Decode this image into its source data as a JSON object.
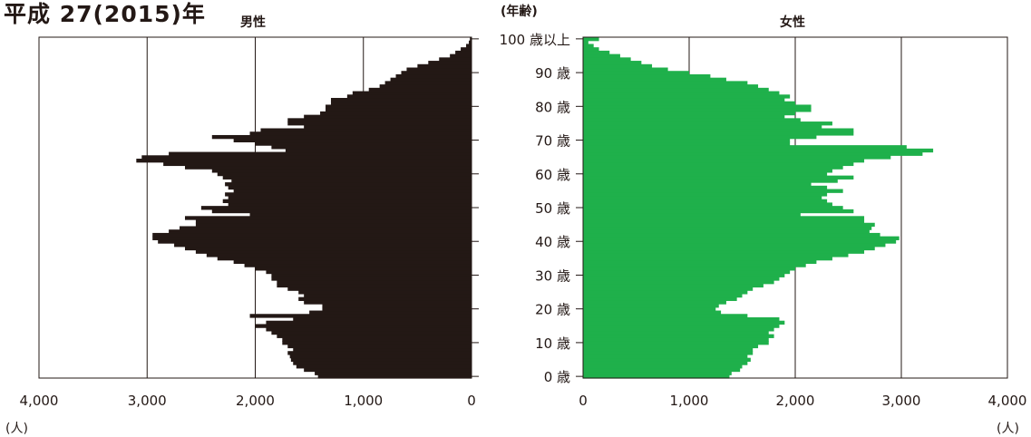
{
  "title": "平成 27(2015)年",
  "age_axis_label": "(年齢)",
  "chart_data": {
    "type": "bar",
    "orientation": "horizontal-population-pyramid",
    "title": "平成 27(2015)年",
    "ylabel": "(年齢)",
    "xlabel": "(人)",
    "xlim": [
      0,
      4000
    ],
    "x_ticks": [
      "4,000",
      "3,000",
      "2,000",
      "1,000",
      "0",
      "0",
      "1,000",
      "2,000",
      "3,000",
      "4,000"
    ],
    "y_ticks": [
      "0 歳",
      "10 歳",
      "20 歳",
      "30 歳",
      "40 歳",
      "50 歳",
      "60 歳",
      "70 歳",
      "80 歳",
      "90 歳",
      "100 歳以上"
    ],
    "ages": [
      0,
      1,
      2,
      3,
      4,
      5,
      6,
      7,
      8,
      9,
      10,
      11,
      12,
      13,
      14,
      15,
      16,
      17,
      18,
      19,
      20,
      21,
      22,
      23,
      24,
      25,
      26,
      27,
      28,
      29,
      30,
      31,
      32,
      33,
      34,
      35,
      36,
      37,
      38,
      39,
      40,
      41,
      42,
      43,
      44,
      45,
      46,
      47,
      48,
      49,
      50,
      51,
      52,
      53,
      54,
      55,
      56,
      57,
      58,
      59,
      60,
      61,
      62,
      63,
      64,
      65,
      66,
      67,
      68,
      69,
      70,
      71,
      72,
      73,
      74,
      75,
      76,
      77,
      78,
      79,
      80,
      81,
      82,
      83,
      84,
      85,
      86,
      87,
      88,
      89,
      90,
      91,
      92,
      93,
      94,
      95,
      96,
      97,
      98,
      99,
      100
    ],
    "series": [
      {
        "name": "男性",
        "color": "#231815",
        "values": [
          1420,
          1450,
          1550,
          1620,
          1650,
          1670,
          1680,
          1700,
          1650,
          1700,
          1750,
          1750,
          1800,
          1850,
          1900,
          2000,
          1900,
          1650,
          2050,
          1500,
          1380,
          1380,
          1550,
          1600,
          1550,
          1600,
          1700,
          1800,
          1800,
          1850,
          1850,
          1900,
          2000,
          2100,
          2200,
          2350,
          2450,
          2550,
          2650,
          2750,
          2900,
          2950,
          2950,
          2800,
          2700,
          2550,
          2550,
          2650,
          2050,
          2400,
          2500,
          2250,
          2300,
          2250,
          2280,
          2200,
          2250,
          2280,
          2220,
          2300,
          2350,
          2400,
          2650,
          2850,
          3100,
          3050,
          2800,
          1720,
          1850,
          2000,
          2200,
          2400,
          2050,
          1950,
          1550,
          1700,
          1700,
          1550,
          1400,
          1350,
          1350,
          1300,
          1300,
          1150,
          1100,
          950,
          850,
          800,
          750,
          700,
          650,
          600,
          500,
          400,
          300,
          200,
          150,
          100,
          50,
          25,
          15
        ]
      },
      {
        "name": "女性",
        "color": "#1fb04b",
        "values": [
          1380,
          1400,
          1480,
          1500,
          1550,
          1580,
          1550,
          1600,
          1600,
          1650,
          1750,
          1750,
          1800,
          1750,
          1800,
          1850,
          1900,
          1850,
          1550,
          1300,
          1250,
          1280,
          1350,
          1450,
          1500,
          1550,
          1600,
          1700,
          1800,
          1850,
          1900,
          1950,
          2000,
          2100,
          2200,
          2350,
          2500,
          2650,
          2750,
          2850,
          2950,
          2980,
          2800,
          2700,
          2720,
          2750,
          2650,
          2650,
          2050,
          2550,
          2450,
          2350,
          2300,
          2250,
          2300,
          2450,
          2300,
          2150,
          2400,
          2550,
          2300,
          2350,
          2450,
          2550,
          2650,
          2900,
          3200,
          3300,
          3050,
          1950,
          1950,
          2200,
          2550,
          2550,
          2250,
          2350,
          2050,
          1900,
          2000,
          2150,
          2150,
          2000,
          1900,
          1950,
          1850,
          1750,
          1650,
          1550,
          1350,
          1200,
          1000,
          800,
          650,
          550,
          450,
          350,
          250,
          150,
          100,
          50,
          150
        ]
      }
    ],
    "legend": "above each panel"
  }
}
